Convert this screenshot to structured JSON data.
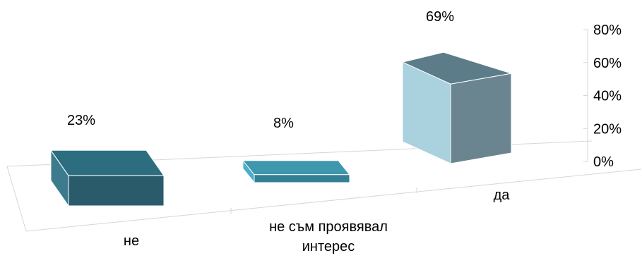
{
  "chart_data": {
    "type": "bar",
    "style": "3d-column",
    "title": "",
    "xlabel": "",
    "ylabel": "",
    "categories": [
      "не",
      "не съм проявявал интерес",
      "да"
    ],
    "category_lines": [
      [
        "не"
      ],
      [
        "не съм проявявал",
        "интерес"
      ],
      [
        "да"
      ]
    ],
    "values": [
      0.23,
      0.08,
      0.69
    ],
    "data_labels": [
      "23%",
      "8%",
      "69%"
    ],
    "ylim": [
      0,
      0.8
    ],
    "ytick_labels": [
      "0%",
      "20%",
      "40%",
      "60%",
      "80%"
    ],
    "yaxis_side": "right",
    "grid": false,
    "legend": "none",
    "colors": {
      "bar_front": [
        "#2a5b6b",
        "#357f94",
        "#a9d1de"
      ],
      "bar_side": [
        "#3c7b8d",
        "#4aafc8",
        "#6b8590"
      ],
      "bar_top": [
        "#2c6e7f",
        "#3f97ad",
        "#5c7c89"
      ],
      "floor_line": "#d6d6d6"
    }
  }
}
